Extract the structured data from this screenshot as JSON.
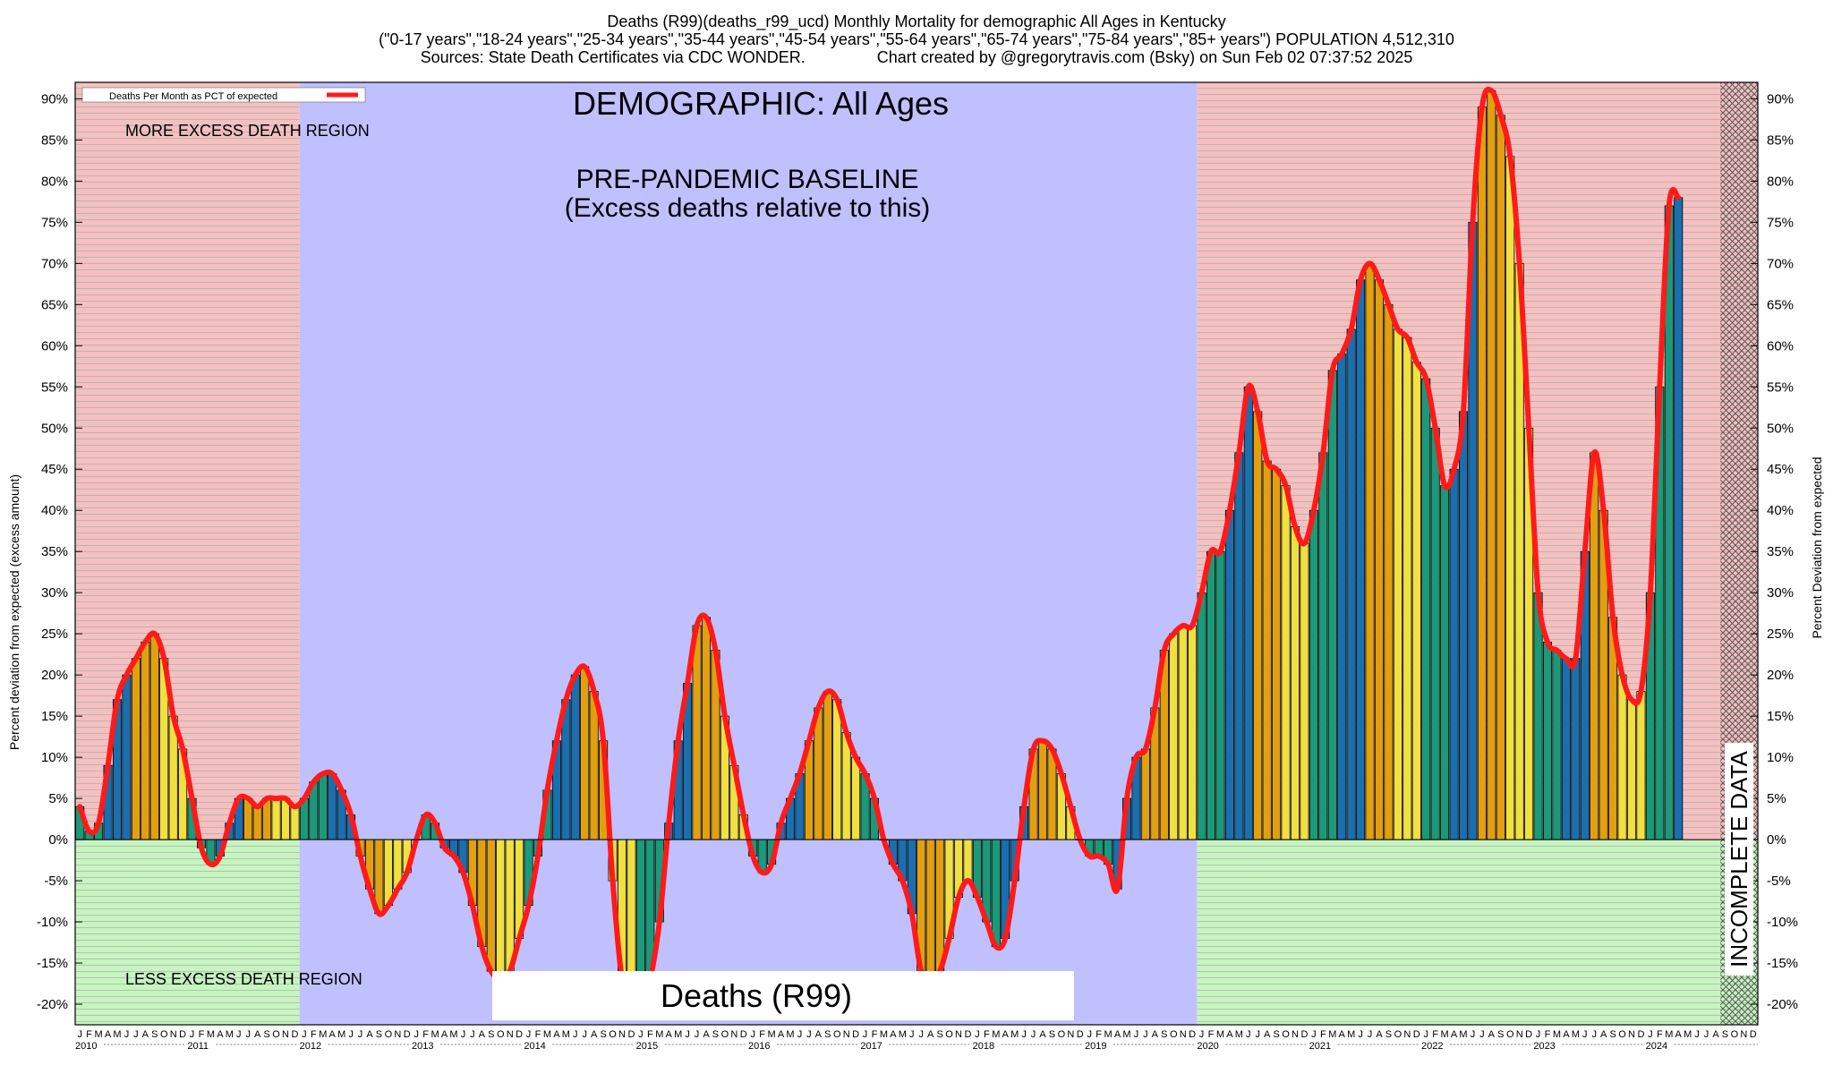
{
  "header": {
    "line1": "Deaths (R99)(deaths_r99_ucd) Monthly Mortality for demographic All Ages in Kentucky",
    "line2": "(\"0-17 years\",\"18-24 years\",\"25-34 years\",\"35-44 years\",\"45-54 years\",\"55-64 years\",\"65-74 years\",\"75-84 years\",\"85+ years\") POPULATION 4,512,310",
    "line3": "Sources: State Death Certificates via CDC WONDER.                Chart created by @gregorytravis.com (Bsky) on Sun Feb 02 07:37:52 2025"
  },
  "labels": {
    "demographic": "DEMOGRAPHIC: All Ages",
    "baseline_line1": "PRE-PANDEMIC BASELINE",
    "baseline_line2": "(Excess deaths relative to this)",
    "more_region": "MORE EXCESS DEATH REGION",
    "less_region": "LESS EXCESS DEATH REGION",
    "incomplete": "INCOMPLETE DATA",
    "bottom_box": "Deaths (R99)",
    "legend": "Deaths Per Month as PCT of expected",
    "ylabel_left": "Percent deviation from expected (excess amount)",
    "ylabel_right": "Percent Deviation from expected"
  },
  "colors": {
    "excess_region": "#f5c0c0",
    "less_region": "#c6f5c0",
    "baseline_region": "#c0c0ff",
    "line": "#ff1a1a",
    "bar_green": "#1a9a78",
    "bar_blue": "#1a6fae",
    "bar_orange": "#e0a010",
    "bar_yellow": "#f0e040",
    "incomplete_hatch": "#555555"
  },
  "chart_data": {
    "type": "bar",
    "title": "Deaths (R99)(deaths_r99_ucd) Monthly Mortality for demographic All Ages in Kentucky",
    "xlabel": "",
    "ylabel": "Percent deviation from expected (excess amount)",
    "ylabel_right": "Percent Deviation from expected",
    "ylim": [
      -22.5,
      92
    ],
    "yticks": [
      -20,
      -15,
      -10,
      -5,
      0,
      5,
      10,
      15,
      20,
      25,
      30,
      35,
      40,
      45,
      50,
      55,
      60,
      65,
      70,
      75,
      80,
      85,
      90
    ],
    "ytick_labels": [
      "-20%",
      "-15%",
      "-10%",
      "-5%",
      "0%",
      "5%",
      "10%",
      "15%",
      "20%",
      "25%",
      "30%",
      "35%",
      "40%",
      "45%",
      "50%",
      "55%",
      "60%",
      "65%",
      "70%",
      "75%",
      "80%",
      "85%",
      "90%"
    ],
    "month_labels": [
      "J",
      "F",
      "M",
      "A",
      "M",
      "J",
      "J",
      "A",
      "S",
      "O",
      "N",
      "D"
    ],
    "years": [
      "2010",
      "2011",
      "2012",
      "2013",
      "2014",
      "2015",
      "2016",
      "2017",
      "2018",
      "2019",
      "2020",
      "2021",
      "2022",
      "2023",
      "2024"
    ],
    "incomplete_from_month_index": 176,
    "series": [
      {
        "name": "Deaths Per Month as PCT of expected",
        "values": [
          4,
          1,
          2,
          9,
          17,
          20,
          22,
          24,
          25,
          22,
          15,
          11,
          5,
          -1,
          -3,
          -2,
          2,
          5,
          5,
          4,
          5,
          5,
          5,
          4,
          5,
          7,
          8,
          8,
          6,
          3,
          -2,
          -6,
          -9,
          -8,
          -6,
          -4,
          0,
          3,
          2,
          -1,
          -2,
          -4,
          -8,
          -13,
          -16,
          -17,
          -16,
          -12,
          -8,
          -2,
          6,
          12,
          17,
          20,
          21,
          18,
          12,
          -5,
          -17,
          -20,
          -20,
          -17,
          -10,
          2,
          12,
          19,
          26,
          27,
          23,
          15,
          9,
          3,
          -2,
          -4,
          -3,
          2,
          5,
          8,
          12,
          16,
          18,
          17,
          13,
          10,
          8,
          5,
          0,
          -3,
          -5,
          -9,
          -16,
          -17,
          -16,
          -12,
          -7,
          -5,
          -7,
          -10,
          -13,
          -12,
          -5,
          4,
          11,
          12,
          11,
          8,
          4,
          0,
          -2,
          -2,
          -3,
          -6,
          5,
          10,
          11,
          16,
          23,
          25,
          26,
          26,
          30,
          35,
          35,
          40,
          47,
          55,
          52,
          46,
          45,
          43,
          38,
          36,
          40,
          47,
          57,
          59,
          62,
          68,
          70,
          68,
          65,
          62,
          61,
          58,
          56,
          50,
          43,
          45,
          52,
          75,
          89,
          91,
          88,
          83,
          70,
          50,
          30,
          24,
          23,
          22,
          22,
          35,
          47,
          40,
          27,
          20,
          17,
          18,
          30,
          55,
          77,
          78
        ]
      }
    ]
  }
}
